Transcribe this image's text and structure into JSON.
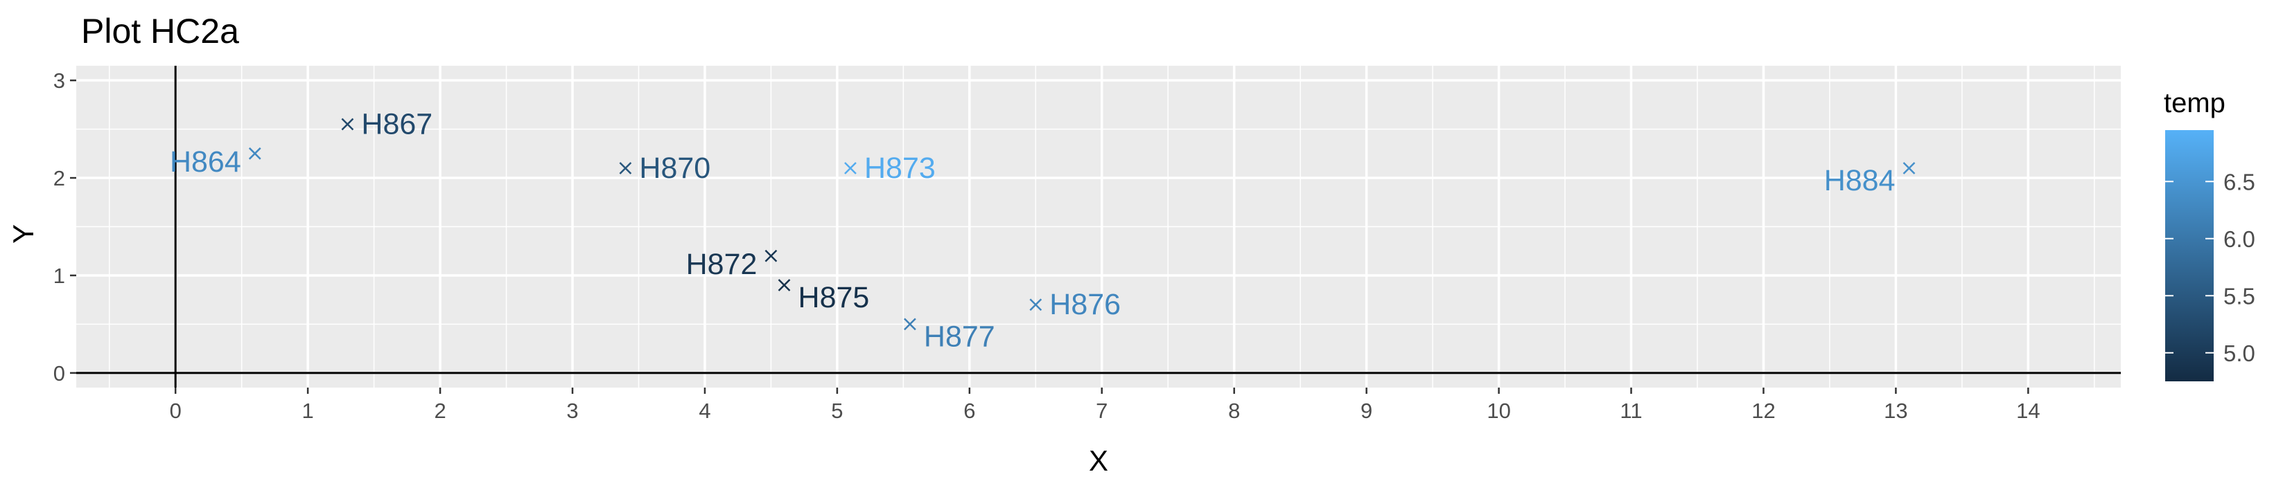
{
  "chart_data": {
    "type": "scatter",
    "title": "Plot HC2a",
    "xlabel": "X",
    "ylabel": "Y",
    "xlim": [
      -0.75,
      14.7
    ],
    "ylim": [
      -0.15,
      3.15
    ],
    "x_ticks": [
      0,
      1,
      2,
      3,
      4,
      5,
      6,
      7,
      8,
      9,
      10,
      11,
      12,
      13,
      14
    ],
    "y_ticks": [
      0,
      1,
      2,
      3
    ],
    "marker": "x",
    "grid": true,
    "reference_lines": {
      "x": 0,
      "y": 0
    },
    "points": [
      {
        "label": "H864",
        "x": 0.6,
        "y": 2.25,
        "temp": 6.3,
        "label_side": "left"
      },
      {
        "label": "H867",
        "x": 1.3,
        "y": 2.55,
        "temp": 5.25,
        "label_side": "right"
      },
      {
        "label": "H870",
        "x": 3.4,
        "y": 2.1,
        "temp": 5.45,
        "label_side": "right"
      },
      {
        "label": "H873",
        "x": 5.1,
        "y": 2.1,
        "temp": 6.85,
        "label_side": "right"
      },
      {
        "label": "H872",
        "x": 4.5,
        "y": 1.2,
        "temp": 4.95,
        "label_side": "left"
      },
      {
        "label": "H875",
        "x": 4.6,
        "y": 0.9,
        "temp": 4.85,
        "label_side": "right-below"
      },
      {
        "label": "H877",
        "x": 5.55,
        "y": 0.5,
        "temp": 6.15,
        "label_side": "right-below"
      },
      {
        "label": "H876",
        "x": 6.5,
        "y": 0.7,
        "temp": 6.25,
        "label_side": "right"
      },
      {
        "label": "H884",
        "x": 13.1,
        "y": 2.1,
        "temp": 6.4,
        "label_side": "left-below"
      }
    ],
    "legend": {
      "title": "temp",
      "placement": "right",
      "type": "colorbar",
      "min": 4.75,
      "max": 6.95,
      "ticks": [
        "5.0",
        "5.5",
        "6.0",
        "6.5"
      ],
      "low_color": "#132b43",
      "high_color": "#56b1f7"
    },
    "panel_color": "#ebebeb",
    "grid_color": "#ffffff"
  }
}
